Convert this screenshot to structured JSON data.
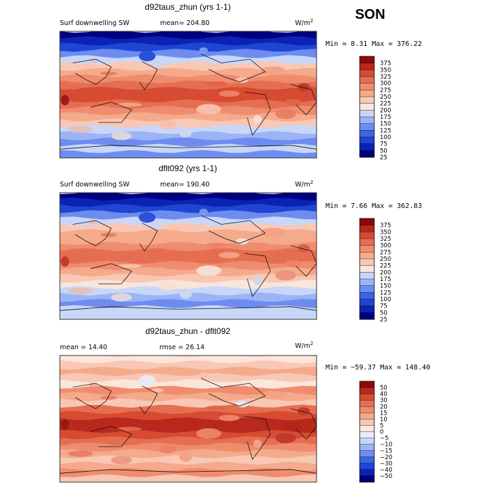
{
  "season": "SON",
  "units_base": "W/m",
  "units_exp": "2",
  "colors": {
    "abs": [
      "#000080",
      "#0a23b4",
      "#1e46d2",
      "#3c64e6",
      "#6e8cf0",
      "#9bb4f5",
      "#c8d7f8",
      "#f8e6dc",
      "#f8c8b4",
      "#f5aa8c",
      "#f08c6e",
      "#e66e50",
      "#d74b32",
      "#b9281c",
      "#8c0a0a"
    ],
    "diff": [
      "#000080",
      "#0a23b4",
      "#1e46d2",
      "#3c64e6",
      "#6e8cf0",
      "#9bb4f5",
      "#c8d7f8",
      "#e6eefc",
      "#fce6dc",
      "#f8c8b4",
      "#f5aa8c",
      "#f08c6e",
      "#e66e50",
      "#d74b32",
      "#b9281c",
      "#8c0a0a"
    ]
  },
  "panels": [
    {
      "id": "model",
      "title": "d92taus_zhun (yrs 1-1)",
      "left_label": "Surf downwelling SW",
      "mid_label": "mean= 204.80",
      "minmax": "Min =    8.31 Max = 376.22",
      "colorbar_ticks": [
        "375",
        "350",
        "325",
        "300",
        "275",
        "250",
        "225",
        "200",
        "175",
        "150",
        "125",
        "100",
        "75",
        "50",
        "25"
      ]
    },
    {
      "id": "control",
      "title": "dflt092 (yrs 1-1)",
      "left_label": "Surf downwelling SW",
      "mid_label": "mean= 190.40",
      "minmax": "Min =    7.66 Max = 362.83",
      "colorbar_ticks": [
        "375",
        "350",
        "325",
        "300",
        "275",
        "250",
        "225",
        "200",
        "175",
        "150",
        "125",
        "100",
        "75",
        "50",
        "25"
      ]
    },
    {
      "id": "difference",
      "title": "d92taus_zhun - dflt092",
      "left_label": "mean =   14.40",
      "mid_label": "rmse =   26.14",
      "minmax": "Min = −59.37 Max = 148.40",
      "colorbar_ticks": [
        "50",
        "40",
        "30",
        "20",
        "15",
        "10",
        "5",
        "0",
        "−5",
        "−10",
        "−15",
        "−20",
        "−30",
        "−40",
        "−50"
      ]
    }
  ]
}
